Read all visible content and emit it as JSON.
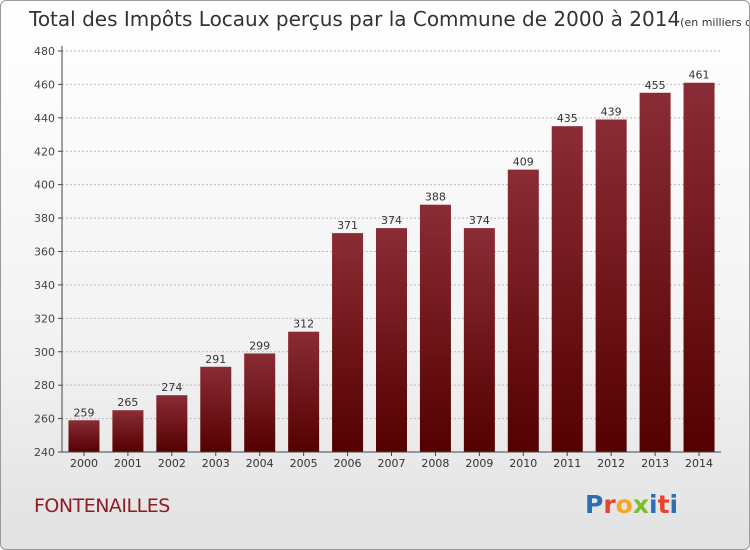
{
  "title": "Total des Impôts Locaux perçus par la Commune de 2000 à 2014",
  "unit": "(en milliers d'€)",
  "commune": "FONTENAILLES",
  "logo": {
    "text": "Proxiti",
    "colors": [
      "#2f6cb6",
      "#e8432f",
      "#f5a623",
      "#7bbf2a",
      "#2f6cb6",
      "#e8432f",
      "#2f6cb6"
    ]
  },
  "colors": {
    "bar_top": "#8a2c36",
    "bar_bottom": "#540000",
    "grid": "#bbbbbb"
  },
  "chart_data": {
    "type": "bar",
    "title": "Total des Impôts Locaux perçus par la Commune de 2000 à 2014",
    "categories": [
      "2000",
      "2001",
      "2002",
      "2003",
      "2004",
      "2005",
      "2006",
      "2007",
      "2008",
      "2009",
      "2010",
      "2011",
      "2012",
      "2013",
      "2014"
    ],
    "values": [
      259,
      265,
      274,
      291,
      299,
      312,
      371,
      374,
      388,
      374,
      409,
      435,
      439,
      455,
      461
    ],
    "ylim": [
      240,
      480
    ],
    "yticks": [
      240,
      260,
      280,
      300,
      320,
      340,
      360,
      380,
      400,
      420,
      440,
      460,
      480
    ],
    "grid": true,
    "xlabel": "",
    "ylabel": ""
  }
}
